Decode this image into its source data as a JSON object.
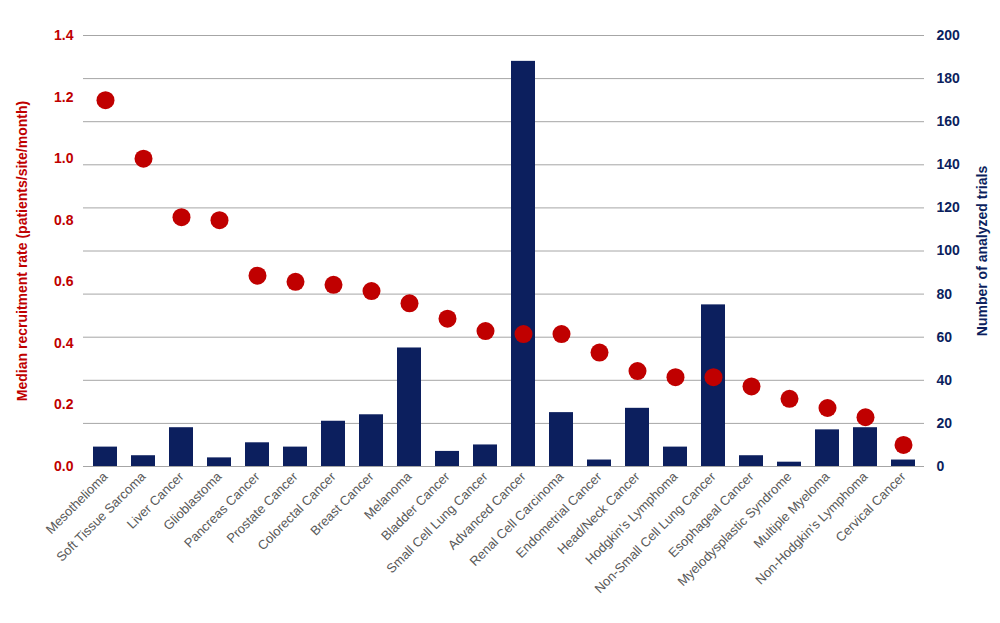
{
  "chart_data": {
    "type": "bar",
    "categories": [
      "Mesothelioma",
      "Soft Tissue Sarcoma",
      "Liver Cancer",
      "Glioblastoma",
      "Pancreas Cancer",
      "Prostate Cancer",
      "Colorectal Cancer",
      "Breast Cancer",
      "Melanoma",
      "Bladder Cancer",
      "Small Cell Lung Cancer",
      "Advanced Cancer",
      "Renal Cell Carcinoma",
      "Endometrial Cancer",
      "Head/Neck Cancer",
      "Hodgkin's Lymphoma",
      "Non-Small Cell Lung Cancer",
      "Esophageal Cancer",
      "Myelodysplastic Syndrome",
      "Multiple Myeloma",
      "Non-Hodgkin's Lymphoma",
      "Cervical Cancer"
    ],
    "series": [
      {
        "name": "Median recruitment rate (patients/site/month)",
        "type": "scatter",
        "marker": "circle",
        "color": "#c00000",
        "values": [
          1.19,
          1.0,
          0.81,
          0.8,
          0.62,
          0.6,
          0.59,
          0.57,
          0.53,
          0.48,
          0.44,
          0.43,
          0.43,
          0.37,
          0.31,
          0.29,
          0.29,
          0.26,
          0.22,
          0.19,
          0.16,
          0.07
        ]
      },
      {
        "name": "Number of analyzed trials",
        "type": "bar",
        "axis": "y2",
        "color": "#0c1f5e",
        "values": [
          9,
          5,
          18,
          4,
          11,
          9,
          21,
          24,
          55,
          7,
          10,
          188,
          25,
          3,
          27,
          9,
          75,
          5,
          2,
          17,
          18,
          3
        ]
      }
    ],
    "ylim": [
      0,
      1.4
    ],
    "yticks": [
      {
        "value": 0,
        "label": "0.0"
      },
      0.2,
      0.4,
      0.6,
      0.8,
      {
        "value": 1,
        "label": "1.0"
      },
      1.2,
      1.4
    ],
    "y2lim": [
      0,
      200
    ],
    "y2ticks": [
      0,
      20,
      40,
      60,
      80,
      100,
      120,
      140,
      160,
      180,
      200
    ],
    "grid": true
  }
}
